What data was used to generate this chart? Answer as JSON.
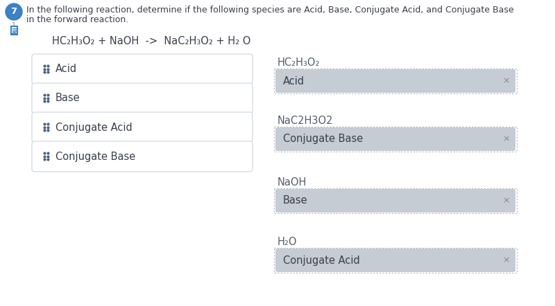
{
  "bg_color": "#ffffff",
  "question_number": "7",
  "question_number_bg": "#3b82c4",
  "question_text_line1": "In the following reaction, determine if the following species are Acid, Base, Conjugate Acid, and Conjugate Base",
  "question_text_line2": "in the forward reaction.",
  "reaction": "HC₂H₃O₂ + NaOH  ->  NaC₂H₃O₂ + H₂ O",
  "drag_items": [
    "Acid",
    "Base",
    "Conjugate Acid",
    "Conjugate Base"
  ],
  "drop_zones": [
    {
      "label": "HC₂H₃O₂",
      "answer": "Acid"
    },
    {
      "label": "NaC2H3O2",
      "answer": "Conjugate Base"
    },
    {
      "label": "NaOH",
      "answer": "Base"
    },
    {
      "label": "H₂O",
      "answer": "Conjugate Acid"
    }
  ],
  "drag_box_color": "#ffffff",
  "drag_box_border": "#d8dde3",
  "answer_box_color": "#c5ccd4",
  "drop_zone_border": "#b0b8c2",
  "text_color": "#3a3f4a",
  "label_color": "#555e6d",
  "x_color": "#888888",
  "icon_color": "#4a6080",
  "font_size_question": 9.0,
  "font_size_reaction": 10.5,
  "font_size_drag": 10.5,
  "font_size_label": 10.5,
  "font_size_answer": 10.5
}
